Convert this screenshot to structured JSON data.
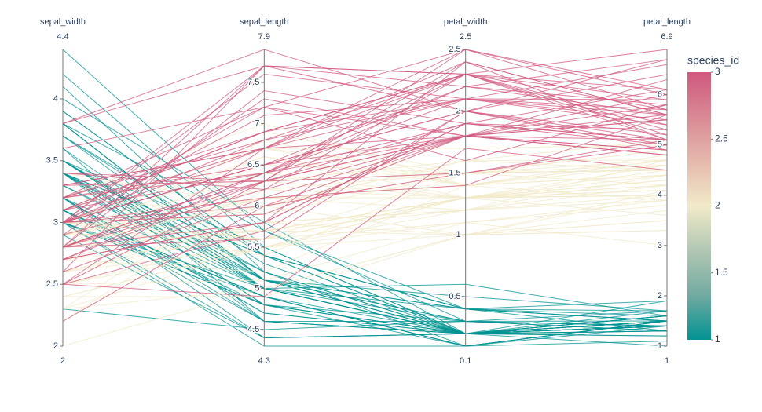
{
  "chart_data": {
    "type": "parcoords",
    "dimensions": [
      {
        "label": "sepal_width",
        "range": [
          2,
          4.4
        ],
        "ticks": [
          2,
          2.5,
          3,
          3.5,
          4
        ],
        "values": [
          3.5,
          3.0,
          3.2,
          3.1,
          3.6,
          3.9,
          3.4,
          3.4,
          2.9,
          3.1,
          3.7,
          3.4,
          3.0,
          3.0,
          4.0,
          4.4,
          3.9,
          3.5,
          3.8,
          3.8,
          3.4,
          3.7,
          3.6,
          3.3,
          3.4,
          3.0,
          3.4,
          3.5,
          3.4,
          3.2,
          3.1,
          3.4,
          4.1,
          4.2,
          3.1,
          3.2,
          3.5,
          3.1,
          3.0,
          3.4,
          3.5,
          2.3,
          3.2,
          3.5,
          3.8,
          3.0,
          3.8,
          3.2,
          3.7,
          3.3,
          3.2,
          3.2,
          3.1,
          2.3,
          2.8,
          2.8,
          3.3,
          2.4,
          2.9,
          2.7,
          2.0,
          3.0,
          2.2,
          2.9,
          2.9,
          3.1,
          3.0,
          2.7,
          2.2,
          2.5,
          3.2,
          2.8,
          2.5,
          2.8,
          2.9,
          3.0,
          2.8,
          3.0,
          2.9,
          2.6,
          2.4,
          2.4,
          2.7,
          2.7,
          3.0,
          3.4,
          3.1,
          2.3,
          3.0,
          2.5,
          2.6,
          3.0,
          2.6,
          2.3,
          2.7,
          3.0,
          2.9,
          2.9,
          2.5,
          2.8,
          3.3,
          2.7,
          3.0,
          2.9,
          3.0,
          3.0,
          2.5,
          2.9,
          2.5,
          3.6,
          3.2,
          2.7,
          3.0,
          2.5,
          2.8,
          3.2,
          3.0,
          3.8,
          2.6,
          2.2,
          3.2,
          2.8,
          2.8,
          2.7,
          3.3,
          3.2,
          2.8,
          3.0,
          2.8,
          3.0,
          2.8,
          3.8,
          2.8,
          2.8,
          2.6,
          3.0,
          3.4,
          3.1,
          3.0,
          3.1,
          3.1,
          3.1,
          2.7,
          3.2,
          3.3,
          3.0,
          2.5,
          3.0,
          3.4,
          3.0
        ]
      },
      {
        "label": "sepal_length",
        "range": [
          4.3,
          7.9
        ],
        "ticks": [
          4.5,
          5,
          5.5,
          6,
          6.5,
          7,
          7.5
        ],
        "values": [
          5.1,
          4.9,
          4.7,
          4.6,
          5.0,
          5.4,
          4.6,
          5.0,
          4.4,
          4.9,
          5.4,
          4.8,
          4.8,
          4.3,
          5.8,
          5.7,
          5.4,
          5.1,
          5.7,
          5.1,
          5.4,
          5.1,
          4.6,
          5.1,
          4.8,
          5.0,
          5.0,
          5.2,
          5.2,
          4.7,
          4.8,
          5.4,
          5.2,
          5.5,
          4.9,
          5.0,
          5.5,
          4.9,
          4.4,
          5.1,
          5.0,
          4.5,
          4.4,
          5.0,
          5.1,
          4.8,
          5.1,
          4.6,
          5.3,
          5.0,
          7.0,
          6.4,
          6.9,
          5.5,
          6.5,
          5.7,
          6.3,
          4.9,
          6.6,
          5.2,
          5.0,
          5.9,
          6.0,
          6.1,
          5.6,
          6.7,
          5.6,
          5.8,
          6.2,
          5.6,
          5.9,
          6.1,
          6.3,
          6.1,
          6.4,
          6.6,
          6.8,
          6.7,
          6.0,
          5.7,
          5.5,
          5.5,
          5.8,
          6.0,
          5.4,
          6.0,
          6.7,
          6.3,
          5.6,
          5.5,
          5.5,
          6.1,
          5.8,
          5.0,
          5.6,
          5.7,
          5.7,
          6.2,
          5.1,
          5.7,
          6.3,
          5.8,
          7.1,
          6.3,
          6.5,
          7.6,
          4.9,
          7.3,
          6.7,
          7.2,
          6.5,
          6.4,
          6.8,
          5.7,
          5.8,
          6.4,
          6.5,
          7.7,
          7.7,
          6.0,
          6.9,
          5.6,
          7.7,
          6.3,
          6.7,
          7.2,
          6.2,
          6.1,
          6.4,
          7.2,
          7.4,
          7.9,
          6.4,
          6.3,
          6.1,
          7.7,
          6.3,
          6.4,
          6.0,
          6.9,
          6.7,
          6.9,
          5.8,
          6.8,
          6.7,
          6.7,
          6.3,
          6.5,
          6.2,
          5.9
        ]
      },
      {
        "label": "petal_width",
        "range": [
          0.1,
          2.5
        ],
        "ticks": [
          0.5,
          1,
          1.5,
          2,
          2.5
        ],
        "values": [
          0.2,
          0.2,
          0.2,
          0.2,
          0.2,
          0.4,
          0.3,
          0.2,
          0.2,
          0.1,
          0.2,
          0.2,
          0.1,
          0.1,
          0.2,
          0.4,
          0.4,
          0.3,
          0.3,
          0.3,
          0.2,
          0.4,
          0.2,
          0.5,
          0.2,
          0.2,
          0.4,
          0.2,
          0.2,
          0.2,
          0.2,
          0.4,
          0.1,
          0.2,
          0.1,
          0.2,
          0.2,
          0.1,
          0.2,
          0.2,
          0.3,
          0.3,
          0.2,
          0.6,
          0.4,
          0.3,
          0.2,
          0.2,
          0.2,
          0.2,
          1.4,
          1.5,
          1.5,
          1.3,
          1.5,
          1.3,
          1.6,
          1.0,
          1.3,
          1.4,
          1.0,
          1.5,
          1.0,
          1.4,
          1.3,
          1.4,
          1.5,
          1.0,
          1.5,
          1.1,
          1.8,
          1.3,
          1.5,
          1.2,
          1.3,
          1.4,
          1.4,
          1.7,
          1.5,
          1.0,
          1.1,
          1.0,
          1.2,
          1.6,
          1.5,
          1.6,
          1.5,
          1.3,
          1.3,
          1.3,
          1.2,
          1.4,
          1.2,
          1.0,
          1.3,
          1.2,
          1.3,
          1.3,
          1.1,
          1.3,
          2.5,
          1.9,
          2.1,
          1.8,
          2.2,
          2.1,
          1.7,
          1.8,
          1.8,
          2.5,
          2.0,
          1.9,
          2.1,
          2.0,
          2.4,
          2.3,
          1.8,
          2.2,
          2.3,
          1.5,
          2.3,
          2.0,
          2.0,
          1.8,
          2.1,
          1.8,
          1.8,
          1.8,
          2.1,
          1.6,
          1.9,
          2.0,
          2.2,
          1.5,
          1.4,
          2.3,
          2.4,
          1.8,
          1.8,
          2.1,
          2.4,
          2.3,
          1.9,
          2.3,
          2.5,
          2.3,
          1.9,
          2.0,
          2.3,
          1.8
        ]
      },
      {
        "label": "petal_length",
        "range": [
          1,
          6.9
        ],
        "ticks": [
          1,
          2,
          3,
          4,
          5,
          6
        ],
        "values": [
          1.4,
          1.4,
          1.3,
          1.5,
          1.4,
          1.7,
          1.4,
          1.5,
          1.4,
          1.5,
          1.5,
          1.6,
          1.4,
          1.1,
          1.2,
          1.5,
          1.3,
          1.4,
          1.7,
          1.5,
          1.7,
          1.5,
          1.0,
          1.7,
          1.9,
          1.6,
          1.6,
          1.5,
          1.4,
          1.6,
          1.6,
          1.5,
          1.5,
          1.4,
          1.5,
          1.2,
          1.3,
          1.5,
          1.3,
          1.5,
          1.3,
          1.3,
          1.3,
          1.6,
          1.9,
          1.4,
          1.6,
          1.4,
          1.5,
          1.4,
          4.7,
          4.5,
          4.9,
          4.0,
          4.6,
          4.5,
          4.7,
          3.3,
          4.6,
          3.9,
          3.5,
          4.2,
          4.0,
          4.7,
          3.6,
          4.4,
          4.5,
          4.1,
          4.5,
          3.9,
          4.8,
          4.0,
          4.9,
          4.7,
          4.3,
          4.4,
          4.8,
          5.0,
          4.5,
          3.5,
          3.8,
          3.7,
          3.9,
          5.1,
          4.5,
          4.5,
          4.7,
          4.4,
          4.1,
          4.0,
          4.4,
          4.6,
          4.0,
          3.3,
          4.2,
          4.2,
          4.2,
          4.3,
          3.0,
          4.1,
          6.0,
          5.1,
          5.9,
          5.6,
          5.8,
          6.6,
          4.5,
          6.3,
          5.8,
          6.1,
          5.1,
          5.3,
          5.5,
          5.0,
          5.1,
          5.3,
          5.5,
          6.7,
          6.9,
          5.0,
          5.7,
          4.9,
          6.7,
          4.9,
          5.7,
          6.0,
          4.8,
          4.9,
          5.6,
          5.8,
          6.1,
          6.4,
          5.6,
          5.1,
          5.6,
          6.1,
          5.6,
          5.5,
          4.8,
          5.4,
          5.6,
          5.1,
          5.1,
          5.9,
          5.7,
          5.2,
          5.0,
          5.2,
          5.4,
          5.1
        ]
      }
    ],
    "line": {
      "colorbar_title": "species_id",
      "cmin": 1,
      "cmax": 3,
      "ticks": [
        1,
        1.5,
        2,
        2.5,
        3
      ],
      "colorscale": [
        "#009392",
        "#72aaa1",
        "#b1c7b3",
        "#f1eac8",
        "#e5b9ad",
        "#d98994",
        "#d0587e"
      ],
      "color": [
        1,
        1,
        1,
        1,
        1,
        1,
        1,
        1,
        1,
        1,
        1,
        1,
        1,
        1,
        1,
        1,
        1,
        1,
        1,
        1,
        1,
        1,
        1,
        1,
        1,
        1,
        1,
        1,
        1,
        1,
        1,
        1,
        1,
        1,
        1,
        1,
        1,
        1,
        1,
        1,
        1,
        1,
        1,
        1,
        1,
        1,
        1,
        1,
        1,
        1,
        2,
        2,
        2,
        2,
        2,
        2,
        2,
        2,
        2,
        2,
        2,
        2,
        2,
        2,
        2,
        2,
        2,
        2,
        2,
        2,
        2,
        2,
        2,
        2,
        2,
        2,
        2,
        2,
        2,
        2,
        2,
        2,
        2,
        2,
        2,
        2,
        2,
        2,
        2,
        2,
        2,
        2,
        2,
        2,
        2,
        2,
        2,
        2,
        2,
        2,
        3,
        3,
        3,
        3,
        3,
        3,
        3,
        3,
        3,
        3,
        3,
        3,
        3,
        3,
        3,
        3,
        3,
        3,
        3,
        3,
        3,
        3,
        3,
        3,
        3,
        3,
        3,
        3,
        3,
        3,
        3,
        3,
        3,
        3,
        3,
        3,
        3,
        3,
        3,
        3,
        3,
        3,
        3,
        3,
        3,
        3,
        3,
        3,
        3,
        3
      ]
    }
  }
}
